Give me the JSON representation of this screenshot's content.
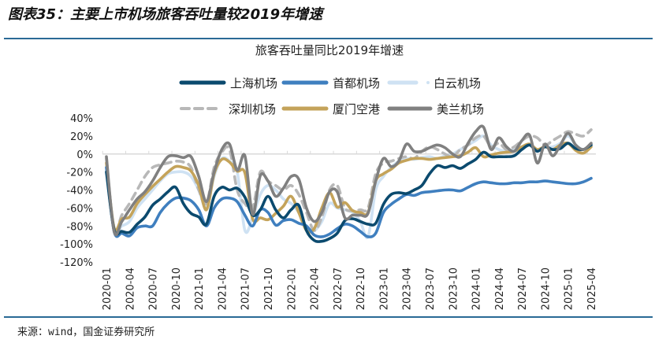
{
  "figure_title": "图表35：主要上市机场旅客吞吐量较2019年增速",
  "source": "来源：wind，国金证券研究所",
  "chart_data": {
    "type": "line",
    "title": "旅客吞吐量同比2019年增速",
    "xlabel": "",
    "ylabel": "",
    "ylim": [
      -120,
      40
    ],
    "y_ticks": [
      "40%",
      "20%",
      "0%",
      "-20%",
      "-40%",
      "-60%",
      "-80%",
      "-100%",
      "-120%"
    ],
    "y_tick_values": [
      40,
      20,
      0,
      -20,
      -40,
      -60,
      -80,
      -100,
      -120
    ],
    "x_start": "2020-01",
    "x_end": "2025-04",
    "x_tick_labels": [
      "2020-01",
      "2020-04",
      "2020-07",
      "2020-10",
      "2021-01",
      "2021-04",
      "2021-07",
      "2021-10",
      "2022-01",
      "2022-04",
      "2022-07",
      "2022-10",
      "2023-01",
      "2023-04",
      "2023-07",
      "2023-10",
      "2024-01",
      "2024-04",
      "2024-07",
      "2024-10",
      "2025-01",
      "2025-04"
    ],
    "grid": false,
    "legend_placement": "top",
    "units": "%",
    "series": [
      {
        "name": "上海机场",
        "color": "#0b4a6e",
        "dash": "solid",
        "values": [
          -20,
          -84,
          -86,
          -87,
          -78,
          -70,
          -57,
          -50,
          -42,
          -37,
          -55,
          -66,
          -70,
          -78,
          -47,
          -37,
          -40,
          -38,
          -48,
          -68,
          -62,
          -47,
          -62,
          -71,
          -62,
          -57,
          -85,
          -96,
          -97,
          -94,
          -88,
          -74,
          -72,
          -75,
          -78,
          -77,
          -56,
          -45,
          -43,
          -44,
          -40,
          -35,
          -22,
          -13,
          -15,
          -13,
          -16,
          -11,
          -6,
          2,
          -3,
          -3,
          -3,
          -2,
          5,
          10,
          3,
          8,
          5,
          6,
          12,
          6,
          5,
          10
        ]
      },
      {
        "name": "首都机场",
        "color": "#3f7fbf",
        "dash": "solid",
        "values": [
          -15,
          -86,
          -88,
          -91,
          -82,
          -80,
          -80,
          -65,
          -55,
          -49,
          -49,
          -52,
          -62,
          -80,
          -60,
          -50,
          -49,
          -53,
          -68,
          -80,
          -62,
          -65,
          -79,
          -74,
          -73,
          -77,
          -80,
          -90,
          -92,
          -89,
          -83,
          -78,
          -80,
          -86,
          -92,
          -88,
          -65,
          -56,
          -50,
          -45,
          -46,
          -43,
          -42,
          -41,
          -40,
          -40,
          -41,
          -37,
          -33,
          -31,
          -32,
          -33,
          -33,
          -32,
          -32,
          -31,
          -31,
          -30,
          -31,
          -32,
          -33,
          -33,
          -31,
          -27
        ]
      },
      {
        "name": "白云机场",
        "color": "#cfe2f3",
        "dash": "long-dot",
        "values": [
          -15,
          -85,
          -80,
          -75,
          -60,
          -50,
          -40,
          -30,
          -22,
          -20,
          -20,
          -25,
          -40,
          -60,
          -25,
          -5,
          -8,
          -20,
          -85,
          -70,
          -45,
          -35,
          -40,
          -50,
          -55,
          -65,
          -80,
          -85,
          -75,
          -55,
          -60,
          -62,
          -65,
          -75,
          -92,
          -40,
          -25,
          -15,
          -8,
          -5,
          -6,
          -4,
          -3,
          -5,
          -2,
          0,
          5,
          10,
          15,
          20,
          10,
          5,
          3,
          5,
          8,
          10,
          5,
          8,
          8,
          12,
          20,
          10,
          5,
          10
        ]
      },
      {
        "name": "深圳机场",
        "color": "#b8b8b8",
        "dash": "dashed",
        "values": [
          -5,
          -85,
          -68,
          -55,
          -40,
          -25,
          -15,
          -12,
          -10,
          -8,
          -9,
          -15,
          -40,
          -55,
          -15,
          2,
          5,
          -40,
          -55,
          -60,
          -20,
          -30,
          -35,
          -40,
          -35,
          -45,
          -65,
          -85,
          -70,
          -40,
          -35,
          -60,
          -63,
          -62,
          -60,
          -22,
          -10,
          -8,
          -5,
          -3,
          -5,
          3,
          8,
          5,
          0,
          -3,
          5,
          10,
          18,
          20,
          8,
          12,
          5,
          8,
          15,
          20,
          18,
          10,
          15,
          20,
          25,
          22,
          20,
          27
        ]
      },
      {
        "name": "厦门空港",
        "color": "#c4a35a",
        "dash": "solid",
        "values": [
          -10,
          -82,
          -72,
          -70,
          -55,
          -45,
          -36,
          -28,
          -20,
          -14,
          -15,
          -19,
          -35,
          -62,
          -22,
          -6,
          -9,
          -19,
          -21,
          -72,
          -71,
          -73,
          -66,
          -58,
          -47,
          -65,
          -85,
          -83,
          -60,
          -43,
          -59,
          -54,
          -63,
          -65,
          -65,
          -30,
          -22,
          -17,
          -10,
          -7,
          -5,
          -5,
          -6,
          -5,
          -4,
          -3,
          -2,
          2,
          7,
          -3,
          -1,
          1,
          2,
          3,
          8,
          11,
          5,
          8,
          5,
          10,
          12,
          4,
          1,
          8
        ]
      },
      {
        "name": "美兰机场",
        "color": "#808080",
        "dash": "solid",
        "values": [
          -3,
          -86,
          -75,
          -62,
          -50,
          -42,
          -30,
          -15,
          -3,
          -2,
          -4,
          -3,
          -25,
          -53,
          -20,
          5,
          11,
          -18,
          -2,
          -67,
          -24,
          -30,
          -47,
          -38,
          -25,
          -28,
          -60,
          -75,
          -65,
          -42,
          -42,
          -71,
          -68,
          -68,
          -66,
          -30,
          -5,
          -14,
          -8,
          11,
          3,
          3,
          7,
          10,
          7,
          0,
          -3,
          12,
          25,
          30,
          5,
          18,
          8,
          3,
          15,
          21,
          -10,
          11,
          -2,
          10,
          23,
          10,
          5,
          12
        ]
      }
    ]
  }
}
